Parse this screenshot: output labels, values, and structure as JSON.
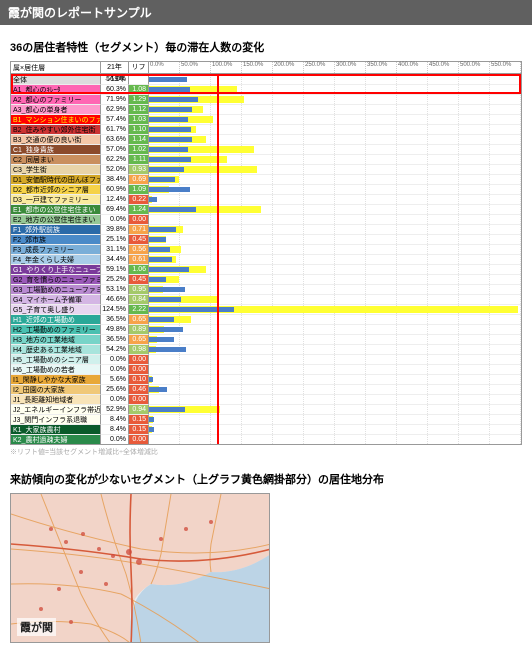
{
  "title": "霞が関のレポートサンプル",
  "subtitle": "36の居住者特性（セグメント）毎の滞在人数の変化",
  "header": {
    "label": "属×居住層",
    "pct": "21年→19年",
    "lift": "リフト値"
  },
  "axis": {
    "max": 5.5,
    "ticks": [
      "0.0%",
      "50.0%",
      "100.0%",
      "150.0%",
      "200.0%",
      "250.0%",
      "300.0%",
      "350.0%",
      "400.0%",
      "450.0%",
      "500.0%",
      "550.0%"
    ]
  },
  "vline_at": 1.0,
  "highlight": {
    "top_row": 0,
    "bottom_row": 1
  },
  "bar_fg_color": "#4a7ec8",
  "bar_bg_color": "#ffff33",
  "lift_colors": {
    "hi": "#65b94e",
    "mid": "#a4c96a",
    "lo": "#f6a34a",
    "vlo": "#e85a3a"
  },
  "rows": [
    {
      "label": "全体",
      "color": "#dddddd",
      "pct": "56.0%",
      "lift": "",
      "bg": 0,
      "fg": 0.56
    },
    {
      "label": "A1_都心のｷﾚｰﾀ",
      "color": "#ff66b3",
      "pct": "60.3%",
      "lift": "1.08",
      "bg": 1.3,
      "fg": 0.6,
      "lc": "hi"
    },
    {
      "label": "A2_都心のファミリー",
      "color": "#ff66b3",
      "pct": "71.9%",
      "lift": "1.29",
      "bg": 1.4,
      "fg": 0.72,
      "lc": "hi"
    },
    {
      "label": "A3_都心の単身者",
      "color": "#ff99cc",
      "pct": "62.9%",
      "lift": "1.12",
      "bg": 0.8,
      "fg": 0.63,
      "lc": "hi"
    },
    {
      "label": "B1_マンション住まいのファミリー",
      "color": "#ff0000",
      "fgtxt": "#ffff00",
      "pct": "57.4%",
      "lift": "1.03",
      "bg": 0.95,
      "fg": 0.57,
      "lc": "hi"
    },
    {
      "label": "B2_住みやすい郊外住宅街",
      "color": "#cc3333",
      "pct": "61.7%",
      "lift": "1.10",
      "bg": 0.7,
      "fg": 0.62,
      "lc": "hi"
    },
    {
      "label": "B3_交通の便の良い街",
      "color": "#f4c7a8",
      "pct": "63.6%",
      "lift": "1.14",
      "bg": 0.85,
      "fg": 0.64,
      "lc": "hi"
    },
    {
      "label": "C1_独身貴族",
      "color": "#8b4a2b",
      "fgtxt": "#fff",
      "pct": "57.0%",
      "lift": "1.02",
      "bg": 1.55,
      "fg": 0.57,
      "lc": "hi"
    },
    {
      "label": "C2_同居まい",
      "color": "#c98f5e",
      "pct": "62.2%",
      "lift": "1.11",
      "bg": 1.15,
      "fg": 0.62,
      "lc": "hi"
    },
    {
      "label": "C3_学生街",
      "color": "#e8d4a8",
      "pct": "52.0%",
      "lift": "0.93",
      "bg": 1.6,
      "fg": 0.52,
      "lc": "mid"
    },
    {
      "label": "D1_安価駅時代の田んぼファミリー",
      "color": "#d4a828",
      "pct": "38.4%",
      "lift": "0.69",
      "bg": 0.45,
      "fg": 0.38,
      "lc": "lo"
    },
    {
      "label": "D2_都市近郊のシニア層",
      "color": "#f5d248",
      "pct": "60.9%",
      "lift": "1.09",
      "bg": 0.3,
      "fg": 0.61,
      "lc": "hi"
    },
    {
      "label": "D3_一戸建てファミリー",
      "color": "#f9ea9e",
      "pct": "12.4%",
      "lift": "0.22",
      "bg": 0.05,
      "fg": 0.12,
      "lc": "vlo"
    },
    {
      "label": "E1_都市の公営住宅住まい",
      "color": "#3a8a3a",
      "fgtxt": "#fff",
      "pct": "69.4%",
      "lift": "1.24",
      "bg": 1.65,
      "fg": 0.69,
      "lc": "hi"
    },
    {
      "label": "E2_地方の公営住宅住まい",
      "color": "#96c896",
      "pct": "0.0%",
      "lift": "0.00",
      "bg": 0.0,
      "fg": 0.0,
      "lc": "vlo"
    },
    {
      "label": "F1_郊外駅前族",
      "color": "#2a6aa8",
      "fgtxt": "#fff",
      "pct": "39.8%",
      "lift": "0.71",
      "bg": 0.5,
      "fg": 0.4,
      "lc": "lo"
    },
    {
      "label": "F2_郊市族",
      "color": "#4a8ac8",
      "pct": "25.1%",
      "lift": "0.45",
      "bg": 0.25,
      "fg": 0.25,
      "lc": "vlo"
    },
    {
      "label": "F3_成長ファミリー",
      "color": "#7aaed8",
      "pct": "31.1%",
      "lift": "0.56",
      "bg": 0.48,
      "fg": 0.31,
      "lc": "lo"
    },
    {
      "label": "F4_年金くらし夫婦",
      "color": "#a8cce8",
      "pct": "34.4%",
      "lift": "0.61",
      "bg": 0.4,
      "fg": 0.34,
      "lc": "lo"
    },
    {
      "label": "G1_やりくり上手なニューファミリー",
      "color": "#7a3a9a",
      "fgtxt": "#fff",
      "pct": "59.1%",
      "lift": "1.06",
      "bg": 0.85,
      "fg": 0.59,
      "lc": "hi"
    },
    {
      "label": "G2_育を慣らのニューファミリー",
      "color": "#9a5ab8",
      "pct": "25.2%",
      "lift": "0.45",
      "bg": 0.45,
      "fg": 0.25,
      "lc": "vlo"
    },
    {
      "label": "G3_工場勤めのニューファミリー",
      "color": "#b88ad0",
      "pct": "53.1%",
      "lift": "0.95",
      "bg": 0.2,
      "fg": 0.53,
      "lc": "mid"
    },
    {
      "label": "G4_マイホーム予備軍",
      "color": "#d4b6e4",
      "pct": "46.6%",
      "lift": "0.84",
      "bg": 1.0,
      "fg": 0.47,
      "lc": "mid"
    },
    {
      "label": "G5_子育て奥し盛り",
      "color": "#e8d6f0",
      "pct": "124.5%",
      "lift": "2.22",
      "bg": 5.45,
      "fg": 1.25,
      "lc": "hi"
    },
    {
      "label": "H1_近郊の工場勤め",
      "color": "#2aa898",
      "fgtxt": "#fff",
      "pct": "36.5%",
      "lift": "0.65",
      "bg": 0.62,
      "fg": 0.37,
      "lc": "lo"
    },
    {
      "label": "H2_工場勤めのファミリー",
      "color": "#4ac0b0",
      "pct": "49.8%",
      "lift": "0.89",
      "bg": 0.22,
      "fg": 0.5,
      "lc": "mid"
    },
    {
      "label": "H3_地方の工業地域",
      "color": "#78d4c8",
      "pct": "36.5%",
      "lift": "0.65",
      "bg": 0.12,
      "fg": 0.37,
      "lc": "lo"
    },
    {
      "label": "H4_歴史ある工業地域",
      "color": "#a8e4dc",
      "pct": "54.2%",
      "lift": "0.98",
      "bg": 0.1,
      "fg": 0.54,
      "lc": "mid"
    },
    {
      "label": "H5_工場勤めのシニア層",
      "color": "#d0f0ec",
      "pct": "0.0%",
      "lift": "0.00",
      "bg": 0.0,
      "fg": 0.0,
      "lc": "vlo"
    },
    {
      "label": "H6_工場勤めの若者",
      "color": "#e8f8f6",
      "pct": "0.0%",
      "lift": "0.00",
      "bg": 0.0,
      "fg": 0.0,
      "lc": "vlo"
    },
    {
      "label": "I1_閑静しやかな大家族",
      "color": "#e8a838",
      "pct": "5.6%",
      "lift": "0.10",
      "bg": 0.04,
      "fg": 0.06,
      "lc": "vlo"
    },
    {
      "label": "I2_田園の大家族",
      "color": "#f0c878",
      "pct": "25.6%",
      "lift": "0.46",
      "bg": 0.15,
      "fg": 0.26,
      "lc": "vlo"
    },
    {
      "label": "J1_長距離知地域者",
      "color": "#f8e4b8",
      "pct": "0.0%",
      "lift": "0.00",
      "bg": 0.0,
      "fg": 0.0,
      "lc": "vlo"
    },
    {
      "label": "J2_エネルギーインフラ帯近隣者",
      "color": "#fffff0",
      "pct": "52.9%",
      "lift": "0.94",
      "bg": 1.05,
      "fg": 0.53,
      "lc": "mid"
    },
    {
      "label": "J3_関門インフラ系退職",
      "color": "#fffff0",
      "pct": "8.4%",
      "lift": "0.15",
      "bg": 0.06,
      "fg": 0.08,
      "lc": "vlo"
    },
    {
      "label": "K1_大家族農村",
      "color": "#0a5a2a",
      "fgtxt": "#fff",
      "pct": "8.4%",
      "lift": "0.15",
      "bg": 0.05,
      "fg": 0.08,
      "lc": "vlo"
    },
    {
      "label": "K2_農村過疎夫婦",
      "color": "#2a8a4a",
      "fgtxt": "#fff",
      "pct": "0.0%",
      "lift": "0.00",
      "bg": 0.0,
      "fg": 0.0,
      "lc": "vlo"
    }
  ],
  "footnote": "※リフト値=当該セグメント増減比÷全体増減比",
  "map_title": "来訪傾向の変化が少ないセグメント（上グラフ黄色網掛部分）の居住地分布",
  "map_label": "霞が関"
}
